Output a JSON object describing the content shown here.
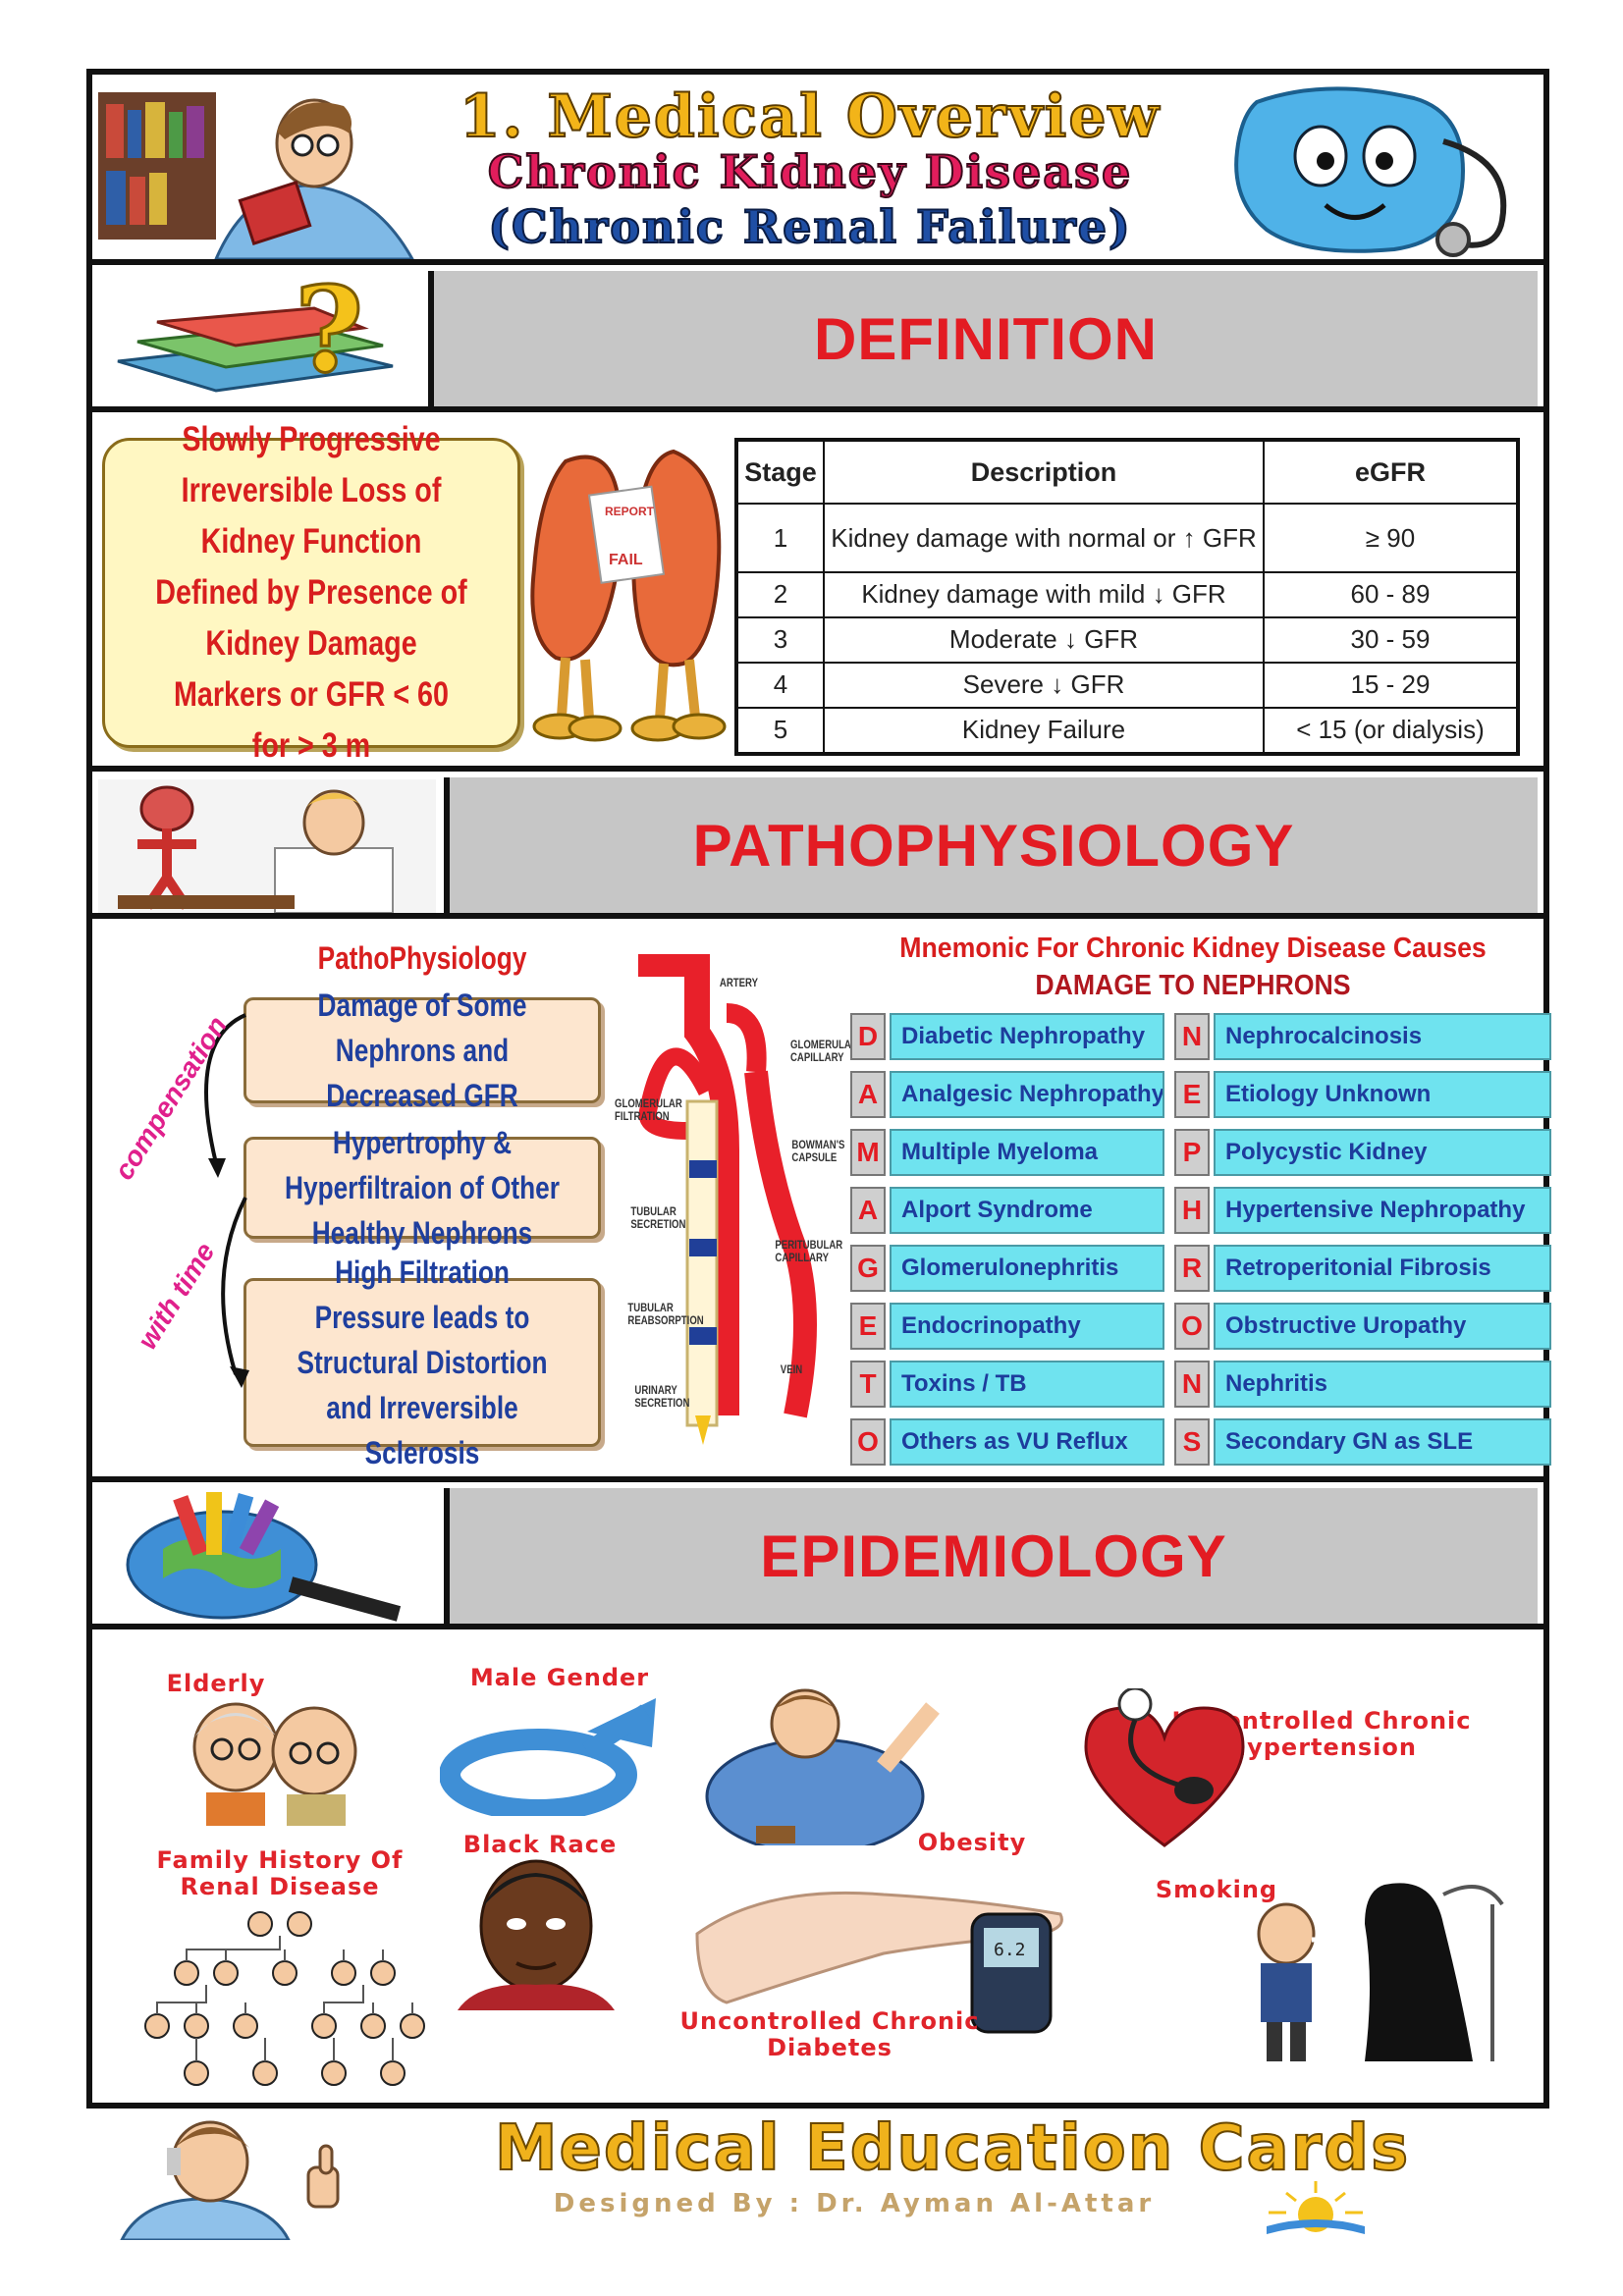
{
  "header": {
    "title": "1. Medical Overview",
    "subtitle": "Chronic Kidney Disease",
    "subtitle2": "(Chronic Renal Failure)"
  },
  "definition": {
    "heading": "DEFINITION",
    "text": "Slowly Progressive Irreversible Loss of Kidney Function Defined by Presence of Kidney Damage Markers or GFR < 60 for > 3 m",
    "table": {
      "headers": [
        "Stage",
        "Description",
        "eGFR"
      ],
      "rows": [
        [
          "1",
          "Kidney damage with normal or ↑ GFR",
          "≥ 90"
        ],
        [
          "2",
          "Kidney damage with mild ↓ GFR",
          "60 - 89"
        ],
        [
          "3",
          "Moderate ↓ GFR",
          "30 - 59"
        ],
        [
          "4",
          "Severe ↓ GFR",
          "15 - 29"
        ],
        [
          "5",
          "Kidney Failure",
          "< 15 (or dialysis)"
        ]
      ]
    }
  },
  "pathophysiology": {
    "heading": "PATHOPHYSIOLOGY",
    "sub_title": "PathoPhysiology",
    "boxes": [
      "Damage of Some Nephrons and Decreased GFR",
      "Hypertrophy & Hyperfiltraion of Other Healthy Nephrons",
      "High Filtration Pressure leads to Structural Distortion and Irreversible Sclerosis"
    ],
    "arc_label_1": "compensation",
    "arc_label_2": "with time",
    "diagram_labels": {
      "artery": "ARTERY",
      "glomerular_capillary": "GLOMERULAR CAPILLARY",
      "glomerular_filtration": "GLOMERULAR FILTRATION",
      "bowmans_capsule": "BOWMAN'S CAPSULE",
      "tubular_secretion": "TUBULAR SECRETION",
      "peritubular_capillary": "PERITUBULAR CAPILLARY",
      "tubular_reabsorption": "TUBULAR REABSORPTION",
      "vein": "VEIN",
      "urinary_secretion": "URINARY SECRETION"
    },
    "mnemonic": {
      "title": "Mnemonic For Chronic Kidney Disease Causes",
      "subtitle": "DAMAGE TO NEPHRONS",
      "left": [
        {
          "letter": "D",
          "text": "Diabetic Nephropathy"
        },
        {
          "letter": "A",
          "text": "Analgesic Nephropathy"
        },
        {
          "letter": "M",
          "text": "Multiple Myeloma"
        },
        {
          "letter": "A",
          "text": "Alport Syndrome"
        },
        {
          "letter": "G",
          "text": "Glomerulonephritis"
        },
        {
          "letter": "E",
          "text": "Endocrinopathy"
        },
        {
          "letter": "T",
          "text": "Toxins / TB"
        },
        {
          "letter": "O",
          "text": "Others as VU Reflux"
        }
      ],
      "right": [
        {
          "letter": "N",
          "text": "Nephrocalcinosis"
        },
        {
          "letter": "E",
          "text": "Etiology Unknown"
        },
        {
          "letter": "P",
          "text": "Polycystic Kidney"
        },
        {
          "letter": "H",
          "text": "Hypertensive Nephropathy"
        },
        {
          "letter": "R",
          "text": "Retroperitonial Fibrosis"
        },
        {
          "letter": "O",
          "text": "Obstructive Uropathy"
        },
        {
          "letter": "N",
          "text": "Nephritis"
        },
        {
          "letter": "S",
          "text": "Secondary GN as SLE"
        }
      ]
    }
  },
  "epidemiology": {
    "heading": "EPIDEMIOLOGY",
    "labels": {
      "elderly": "Elderly",
      "male": "Male Gender",
      "black": "Black Race",
      "obesity": "Obesity",
      "hypertension": "Uncontrolled Chronic Hypertension",
      "family": "Family History Of Renal Disease",
      "diabetes": "Uncontrolled Chronic Diabetes",
      "smoking": "Smoking"
    },
    "meter_reading": "6.2"
  },
  "footer": {
    "title": "Medical Education Cards",
    "credit": "Designed By : Dr. Ayman Al-Attar"
  },
  "colors": {
    "heading_red": "#e31b23",
    "box_blue_text": "#1f3f9e",
    "mnemonic_cyan": "#6fe3ef",
    "band_gray": "#c6c6c6"
  }
}
